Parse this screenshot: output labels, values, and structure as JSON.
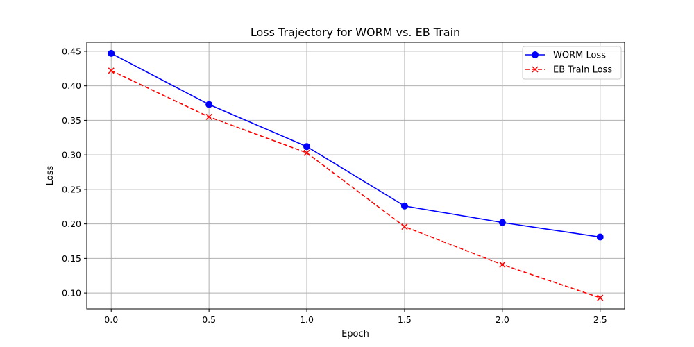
{
  "chart_data": {
    "type": "line",
    "title": "Loss Trajectory for WORM vs. EB Train",
    "xlabel": "Epoch",
    "ylabel": "Loss",
    "xlim": [
      -0.125,
      2.625
    ],
    "ylim": [
      0.077,
      0.463
    ],
    "xticks": [
      0.0,
      0.5,
      1.0,
      1.5,
      2.0,
      2.5
    ],
    "xtick_labels": [
      "0.0",
      "0.5",
      "1.0",
      "1.5",
      "2.0",
      "2.5"
    ],
    "yticks": [
      0.1,
      0.15,
      0.2,
      0.25,
      0.3,
      0.35,
      0.4,
      0.45
    ],
    "ytick_labels": [
      "0.10",
      "0.15",
      "0.20",
      "0.25",
      "0.30",
      "0.35",
      "0.40",
      "0.45"
    ],
    "grid": true,
    "legend_position": "top-right",
    "x": [
      0.0,
      0.5,
      1.0,
      1.5,
      2.0,
      2.5
    ],
    "series": [
      {
        "name": "WORM Loss",
        "values": [
          0.447,
          0.373,
          0.312,
          0.226,
          0.202,
          0.181
        ],
        "color": "#0000ff",
        "linestyle": "solid",
        "marker": "circle"
      },
      {
        "name": "EB Train Loss",
        "values": [
          0.422,
          0.355,
          0.303,
          0.196,
          0.141,
          0.093
        ],
        "color": "#ff0000",
        "linestyle": "dashed",
        "marker": "x"
      }
    ]
  }
}
